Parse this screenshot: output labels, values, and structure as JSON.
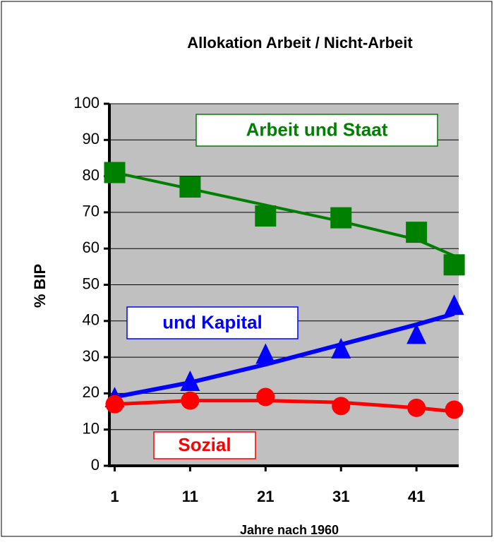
{
  "chart_data": {
    "type": "scatter",
    "title": "Allokation Arbeit / Nicht-Arbeit",
    "xlabel": "Jahre nach 1960",
    "ylabel": "% BIP",
    "x": [
      1,
      11,
      21,
      31,
      41,
      46
    ],
    "xlim": [
      0.3,
      46.6
    ],
    "xticks": [
      1,
      11,
      21,
      31,
      41
    ],
    "ylim": [
      0,
      100
    ],
    "yticks": [
      0,
      10,
      20,
      30,
      40,
      50,
      60,
      70,
      80,
      90,
      100
    ],
    "grid": true,
    "plot_background": "#c0c0c0",
    "series": [
      {
        "name": "Arbeit und Staat",
        "color": "#008000",
        "marker": "square",
        "values": [
          81,
          77,
          69,
          68.5,
          64.5,
          55.5
        ],
        "trend": [
          81,
          76.5,
          72,
          67.5,
          62.5,
          58
        ]
      },
      {
        "name": "und Kapital",
        "color": "#0000ff",
        "marker": "triangle",
        "values": [
          18.5,
          23,
          30.5,
          32,
          36,
          44
        ],
        "trend": [
          19,
          23,
          28,
          33.5,
          39,
          42
        ]
      },
      {
        "name": "Sozial",
        "color": "#ff0000",
        "marker": "circle",
        "values": [
          17,
          18,
          19,
          16.5,
          16,
          15.5
        ],
        "trend": [
          17,
          18,
          18,
          17.5,
          16,
          15
        ]
      }
    ]
  }
}
